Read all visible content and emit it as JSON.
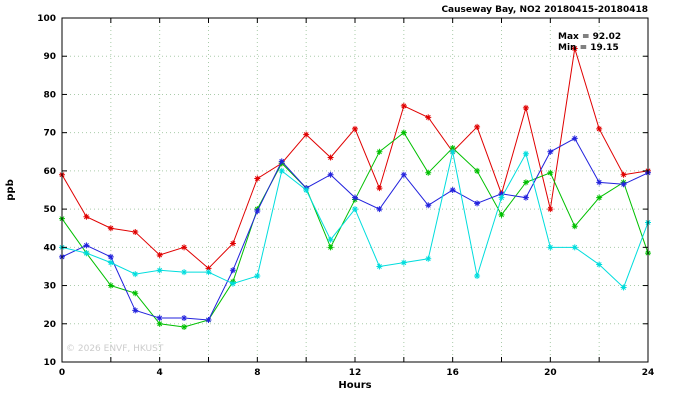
{
  "annotation": {
    "max_label": "Max = 92.02",
    "min_label": "Min = 19.15"
  },
  "watermark": "© 2026 ENVF, HKUST",
  "chart_data": {
    "type": "line",
    "title": "Causeway Bay, NO2 20180415-20180418",
    "xlabel": "Hours",
    "ylabel": "ppb",
    "xlim": [
      0,
      24
    ],
    "ylim": [
      10,
      100
    ],
    "xticks": [
      0,
      4,
      8,
      12,
      16,
      20,
      24
    ],
    "x_grid_step": 2,
    "yticks": [
      10,
      20,
      30,
      40,
      50,
      60,
      70,
      80,
      90,
      100
    ],
    "y_grid_step": 10,
    "grid": true,
    "legend": "none",
    "marker": "asterisk",
    "grid_color": "#aaccaa",
    "x": [
      0,
      1,
      2,
      3,
      4,
      5,
      6,
      7,
      8,
      9,
      10,
      11,
      12,
      13,
      14,
      15,
      16,
      17,
      18,
      19,
      20,
      21,
      22,
      23,
      24
    ],
    "series": [
      {
        "name": "red",
        "color": "#e00000",
        "values": [
          59,
          48,
          45,
          44,
          38,
          40,
          34.5,
          41,
          58,
          62,
          69.5,
          63.5,
          71,
          55.5,
          77,
          74,
          65,
          71.5,
          54,
          76.5,
          50,
          92.02,
          71,
          59,
          60
        ]
      },
      {
        "name": "green",
        "color": "#00c000",
        "values": [
          47.5,
          38.5,
          30,
          28,
          20,
          19.15,
          21,
          31,
          50,
          62,
          55.5,
          40,
          52.5,
          65,
          70,
          59.5,
          66,
          60,
          48.5,
          57,
          59.5,
          45.5,
          53,
          57,
          38.5
        ]
      },
      {
        "name": "blue",
        "color": "#2222dd",
        "values": [
          37.5,
          40.5,
          37.5,
          23.5,
          21.5,
          21.5,
          21,
          34,
          49.5,
          62.5,
          55.5,
          59,
          53,
          50,
          59,
          51,
          55,
          51.5,
          54,
          53,
          65,
          68.5,
          57,
          56.5,
          59.5
        ]
      },
      {
        "name": "cyan",
        "color": "#00dddd",
        "values": [
          40,
          38.5,
          36,
          33,
          34,
          33.5,
          33.5,
          30.5,
          32.5,
          60,
          55,
          42,
          50,
          35,
          36,
          37,
          65,
          32.5,
          53,
          64.5,
          40,
          40,
          35.5,
          29.5,
          46.5
        ]
      }
    ],
    "stats": {
      "max": 92.02,
      "min": 19.15
    }
  }
}
